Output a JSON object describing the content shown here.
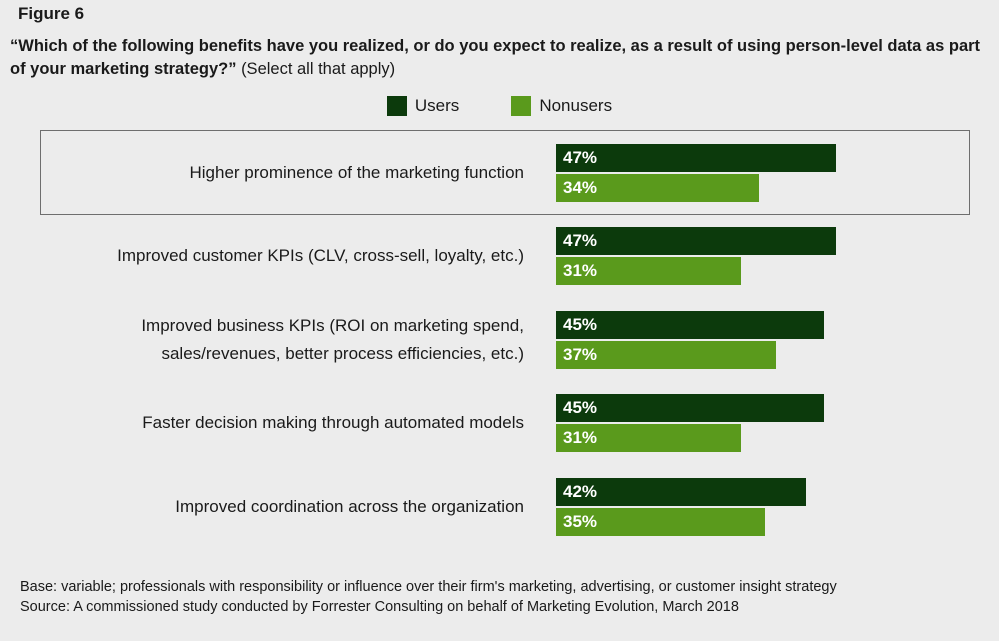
{
  "figure_label": "Figure 6",
  "question": {
    "bold": "“Which of the following benefits have you realized, or do you expect to realize, as a result of using person-level data as part of your marketing strategy?”",
    "note": "(Select all that apply)"
  },
  "colors": {
    "users": "#0c3a0c",
    "nonusers": "#5a9a1c"
  },
  "chart_data": {
    "type": "bar",
    "orientation": "horizontal",
    "categories": [
      "Higher prominence of the marketing function",
      "Improved customer KPIs (CLV, cross-sell, loyalty, etc.)",
      "Improved business KPIs (ROI on marketing spend,\nsales/revenues, better process efficiencies, etc.)",
      "Faster decision making through automated models",
      "Improved coordination across the organization"
    ],
    "series": [
      {
        "name": "Users",
        "values": [
          47,
          47,
          45,
          45,
          42
        ]
      },
      {
        "name": "Nonusers",
        "values": [
          34,
          31,
          37,
          31,
          35
        ]
      }
    ],
    "value_suffix": "%",
    "legend_position": "top-center",
    "highlighted_category": 0
  },
  "footer": {
    "base": "Base: variable; professionals with responsibility or influence over their firm's marketing, advertising, or customer insight strategy",
    "source": "Source: A commissioned study conducted by Forrester Consulting on behalf of Marketing Evolution, March 2018"
  }
}
